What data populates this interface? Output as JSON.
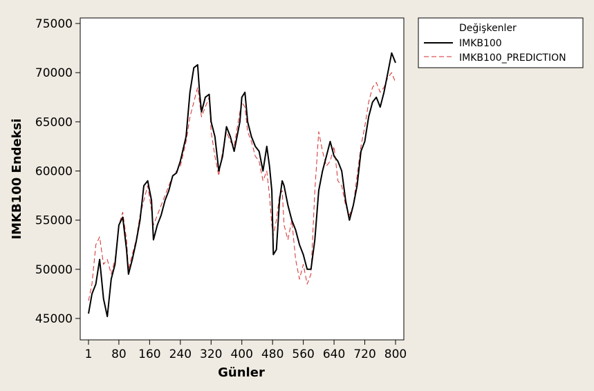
{
  "chart_data": {
    "type": "line",
    "title": "",
    "xlabel": "Günler",
    "ylabel": "IMKB100 Endeksi",
    "xlim": [
      1,
      800
    ],
    "ylim": [
      44000,
      75500
    ],
    "x_ticks": [
      1,
      80,
      160,
      240,
      320,
      400,
      480,
      560,
      640,
      720,
      800
    ],
    "y_ticks": [
      45000,
      50000,
      55000,
      60000,
      65000,
      70000,
      75000
    ],
    "grid": false,
    "legend": {
      "title": "Değişkenler",
      "position": "right-top"
    },
    "series": [
      {
        "name": "IMKB100",
        "color": "#000000",
        "style": "solid",
        "points": [
          [
            1,
            45500
          ],
          [
            10,
            47500
          ],
          [
            20,
            48500
          ],
          [
            30,
            51000
          ],
          [
            40,
            47000
          ],
          [
            50,
            45200
          ],
          [
            60,
            49000
          ],
          [
            70,
            50500
          ],
          [
            80,
            54500
          ],
          [
            90,
            55300
          ],
          [
            100,
            52000
          ],
          [
            105,
            49500
          ],
          [
            115,
            51000
          ],
          [
            125,
            52800
          ],
          [
            135,
            55000
          ],
          [
            145,
            58500
          ],
          [
            155,
            59000
          ],
          [
            165,
            57000
          ],
          [
            170,
            53000
          ],
          [
            180,
            54500
          ],
          [
            190,
            55500
          ],
          [
            200,
            57000
          ],
          [
            210,
            58000
          ],
          [
            220,
            59500
          ],
          [
            230,
            59800
          ],
          [
            240,
            61000
          ],
          [
            255,
            63500
          ],
          [
            265,
            68000
          ],
          [
            275,
            70500
          ],
          [
            285,
            70800
          ],
          [
            290,
            68000
          ],
          [
            295,
            66000
          ],
          [
            305,
            67500
          ],
          [
            315,
            67800
          ],
          [
            320,
            65000
          ],
          [
            330,
            63500
          ],
          [
            340,
            60000
          ],
          [
            350,
            61500
          ],
          [
            360,
            64500
          ],
          [
            370,
            63500
          ],
          [
            380,
            62000
          ],
          [
            395,
            65000
          ],
          [
            400,
            67500
          ],
          [
            408,
            68000
          ],
          [
            415,
            65000
          ],
          [
            425,
            63500
          ],
          [
            435,
            62500
          ],
          [
            445,
            62000
          ],
          [
            455,
            60000
          ],
          [
            465,
            62500
          ],
          [
            472,
            60500
          ],
          [
            478,
            58000
          ],
          [
            482,
            51500
          ],
          [
            490,
            52000
          ],
          [
            498,
            57000
          ],
          [
            505,
            59000
          ],
          [
            510,
            58500
          ],
          [
            520,
            56500
          ],
          [
            530,
            55000
          ],
          [
            540,
            54000
          ],
          [
            550,
            52500
          ],
          [
            560,
            51500
          ],
          [
            570,
            50000
          ],
          [
            580,
            50000
          ],
          [
            590,
            53000
          ],
          [
            600,
            58000
          ],
          [
            610,
            60000
          ],
          [
            620,
            61500
          ],
          [
            630,
            63000
          ],
          [
            640,
            61500
          ],
          [
            650,
            61000
          ],
          [
            660,
            60000
          ],
          [
            670,
            57000
          ],
          [
            680,
            55000
          ],
          [
            690,
            56500
          ],
          [
            700,
            58500
          ],
          [
            710,
            62000
          ],
          [
            720,
            63000
          ],
          [
            730,
            65500
          ],
          [
            740,
            67000
          ],
          [
            750,
            67500
          ],
          [
            760,
            66500
          ],
          [
            770,
            68000
          ],
          [
            780,
            70000
          ],
          [
            790,
            72000
          ],
          [
            800,
            71000
          ]
        ]
      },
      {
        "name": "IMKB100_PREDICTION",
        "color": "#d62a2a",
        "style": "dashed",
        "points": [
          [
            1,
            46800
          ],
          [
            10,
            48500
          ],
          [
            20,
            52500
          ],
          [
            30,
            53300
          ],
          [
            40,
            50500
          ],
          [
            50,
            51000
          ],
          [
            60,
            49500
          ],
          [
            70,
            51000
          ],
          [
            80,
            54500
          ],
          [
            90,
            55800
          ],
          [
            100,
            53000
          ],
          [
            105,
            50000
          ],
          [
            115,
            51500
          ],
          [
            125,
            53000
          ],
          [
            135,
            55500
          ],
          [
            145,
            57000
          ],
          [
            155,
            58500
          ],
          [
            165,
            56000
          ],
          [
            170,
            54500
          ],
          [
            180,
            55500
          ],
          [
            190,
            56500
          ],
          [
            200,
            57500
          ],
          [
            210,
            58500
          ],
          [
            220,
            59500
          ],
          [
            230,
            60000
          ],
          [
            240,
            60500
          ],
          [
            255,
            63000
          ],
          [
            265,
            65500
          ],
          [
            275,
            67000
          ],
          [
            285,
            68500
          ],
          [
            290,
            67000
          ],
          [
            295,
            65500
          ],
          [
            305,
            66500
          ],
          [
            315,
            67500
          ],
          [
            320,
            64000
          ],
          [
            330,
            61500
          ],
          [
            340,
            59500
          ],
          [
            350,
            62000
          ],
          [
            360,
            64000
          ],
          [
            370,
            63000
          ],
          [
            380,
            62500
          ],
          [
            395,
            66000
          ],
          [
            400,
            67000
          ],
          [
            408,
            66500
          ],
          [
            415,
            64000
          ],
          [
            425,
            63000
          ],
          [
            435,
            61500
          ],
          [
            445,
            61000
          ],
          [
            455,
            59000
          ],
          [
            465,
            60000
          ],
          [
            472,
            57500
          ],
          [
            478,
            54500
          ],
          [
            482,
            53500
          ],
          [
            490,
            55000
          ],
          [
            498,
            57500
          ],
          [
            505,
            58000
          ],
          [
            510,
            54500
          ],
          [
            520,
            53000
          ],
          [
            530,
            55000
          ],
          [
            540,
            51000
          ],
          [
            550,
            49000
          ],
          [
            560,
            50500
          ],
          [
            570,
            48500
          ],
          [
            580,
            49500
          ],
          [
            590,
            58000
          ],
          [
            600,
            64000
          ],
          [
            610,
            62000
          ],
          [
            620,
            60500
          ],
          [
            630,
            61000
          ],
          [
            640,
            62500
          ],
          [
            650,
            59000
          ],
          [
            660,
            58500
          ],
          [
            670,
            56500
          ],
          [
            680,
            55500
          ],
          [
            690,
            56500
          ],
          [
            700,
            59500
          ],
          [
            710,
            62500
          ],
          [
            720,
            64500
          ],
          [
            730,
            67000
          ],
          [
            740,
            68500
          ],
          [
            750,
            69000
          ],
          [
            760,
            68000
          ],
          [
            770,
            68500
          ],
          [
            780,
            69500
          ],
          [
            790,
            70000
          ],
          [
            800,
            69000
          ]
        ]
      }
    ]
  }
}
